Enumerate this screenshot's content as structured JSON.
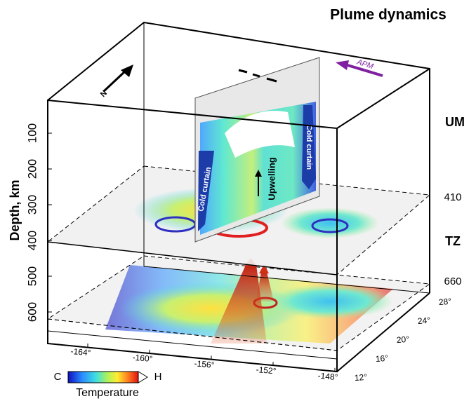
{
  "title": "Plume dynamics",
  "layer_labels": {
    "upper_mantle": "UM",
    "d410": "410",
    "transition_zone": "TZ",
    "d660": "660"
  },
  "depth_axis": {
    "label": "Depth, km",
    "ticks": [
      "100",
      "200",
      "300",
      "400",
      "500",
      "600"
    ]
  },
  "longitude_ticks": [
    "-164°",
    "-160°",
    "-156°",
    "-152°",
    "-148°"
  ],
  "latitude_ticks": [
    "12°",
    "16°",
    "20°",
    "24°",
    "28°"
  ],
  "annotations": {
    "cold_curtain_left": "Cold curtain",
    "cold_curtain_right": "Cold curtain",
    "upwelling": "Upwelling",
    "apm": "APM",
    "north": "N"
  },
  "legend": {
    "low": "C",
    "high": "H",
    "label": "Temperature"
  }
}
